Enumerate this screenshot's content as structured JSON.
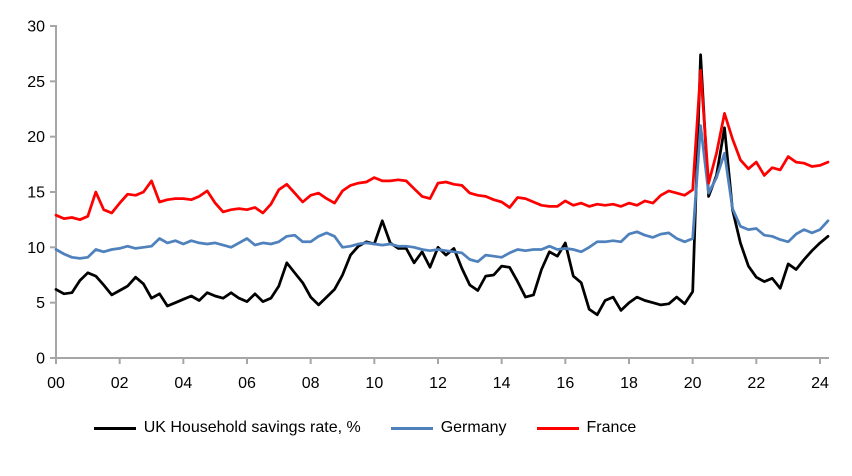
{
  "chart_data": {
    "type": "line",
    "title": "",
    "xlabel": "",
    "ylabel": "",
    "grid": false,
    "legend_position": "bottom",
    "axis_color": "#a6a6a6",
    "ylim": [
      0,
      30
    ],
    "y_ticks": [
      0,
      5,
      10,
      15,
      20,
      25,
      30
    ],
    "x_ticks": [
      {
        "year": 2000,
        "label": "00"
      },
      {
        "year": 2002,
        "label": "02"
      },
      {
        "year": 2004,
        "label": "04"
      },
      {
        "year": 2006,
        "label": "06"
      },
      {
        "year": 2008,
        "label": "08"
      },
      {
        "year": 2010,
        "label": "10"
      },
      {
        "year": 2012,
        "label": "12"
      },
      {
        "year": 2014,
        "label": "14"
      },
      {
        "year": 2016,
        "label": "16"
      },
      {
        "year": 2018,
        "label": "18"
      },
      {
        "year": 2020,
        "label": "20"
      },
      {
        "year": 2022,
        "label": "22"
      },
      {
        "year": 2024,
        "label": "24"
      }
    ],
    "x_start": 2000.0,
    "x_step": 0.25,
    "x_note": "quarterly data, 2000Q1 to 2024Q2",
    "series": [
      {
        "id": "uk",
        "name": "UK Household savings rate, %",
        "color": "#000000",
        "values": [
          6.2,
          5.8,
          5.9,
          7.0,
          7.7,
          7.4,
          6.6,
          5.7,
          6.1,
          6.5,
          7.3,
          6.7,
          5.4,
          5.8,
          4.7,
          5.0,
          5.3,
          5.6,
          5.2,
          5.9,
          5.6,
          5.4,
          5.9,
          5.4,
          5.1,
          5.8,
          5.1,
          5.4,
          6.5,
          8.6,
          7.7,
          6.8,
          5.5,
          4.8,
          5.5,
          6.2,
          7.5,
          9.3,
          10.1,
          10.5,
          10.3,
          12.4,
          10.4,
          9.9,
          9.9,
          8.6,
          9.6,
          8.2,
          10.0,
          9.3,
          9.9,
          8.1,
          6.6,
          6.1,
          7.4,
          7.5,
          8.3,
          8.2,
          6.9,
          5.5,
          5.7,
          8.0,
          9.6,
          9.2,
          10.4,
          7.4,
          6.8,
          4.4,
          3.9,
          5.2,
          5.5,
          4.3,
          5.0,
          5.5,
          5.2,
          5.0,
          4.8,
          4.9,
          5.5,
          4.9,
          6.0,
          27.4,
          14.6,
          16.5,
          20.8,
          13.4,
          10.4,
          8.3,
          7.3,
          6.9,
          7.2,
          6.3,
          8.5,
          8.0,
          8.9,
          9.7,
          10.4,
          11.0
        ]
      },
      {
        "id": "germany",
        "name": "Germany",
        "color": "#4F81BD",
        "values": [
          9.8,
          9.4,
          9.1,
          9.0,
          9.1,
          9.8,
          9.6,
          9.8,
          9.9,
          10.1,
          9.9,
          10.0,
          10.1,
          10.8,
          10.4,
          10.6,
          10.3,
          10.6,
          10.4,
          10.3,
          10.4,
          10.2,
          10.0,
          10.4,
          10.8,
          10.2,
          10.4,
          10.3,
          10.5,
          11.0,
          11.1,
          10.5,
          10.5,
          11.0,
          11.3,
          11.0,
          10.0,
          10.1,
          10.3,
          10.4,
          10.3,
          10.2,
          10.3,
          10.1,
          10.1,
          10.0,
          9.8,
          9.7,
          9.8,
          9.7,
          9.6,
          9.5,
          8.9,
          8.7,
          9.3,
          9.2,
          9.1,
          9.5,
          9.8,
          9.7,
          9.8,
          9.8,
          10.1,
          9.8,
          9.9,
          9.8,
          9.6,
          10.0,
          10.5,
          10.5,
          10.6,
          10.5,
          11.2,
          11.4,
          11.1,
          10.9,
          11.2,
          11.3,
          10.8,
          10.5,
          10.8,
          21.0,
          14.9,
          16.3,
          18.5,
          13.5,
          11.9,
          11.6,
          11.7,
          11.1,
          11.0,
          10.7,
          10.5,
          11.2,
          11.6,
          11.3,
          11.6,
          12.4
        ]
      },
      {
        "id": "france",
        "name": "France",
        "color": "#FF0000",
        "values": [
          12.9,
          12.6,
          12.7,
          12.5,
          12.8,
          15.0,
          13.4,
          13.1,
          14.0,
          14.8,
          14.7,
          15.0,
          16.0,
          14.1,
          14.3,
          14.4,
          14.4,
          14.3,
          14.6,
          15.1,
          14.0,
          13.2,
          13.4,
          13.5,
          13.4,
          13.6,
          13.1,
          13.9,
          15.2,
          15.7,
          14.9,
          14.1,
          14.7,
          14.9,
          14.4,
          14.0,
          15.1,
          15.6,
          15.8,
          15.9,
          16.3,
          16.0,
          16.0,
          16.1,
          16.0,
          15.3,
          14.6,
          14.4,
          15.8,
          15.9,
          15.7,
          15.6,
          14.9,
          14.7,
          14.6,
          14.3,
          14.1,
          13.6,
          14.5,
          14.4,
          14.1,
          13.8,
          13.7,
          13.7,
          14.2,
          13.8,
          14.0,
          13.7,
          13.9,
          13.8,
          13.9,
          13.7,
          14.0,
          13.8,
          14.2,
          14.0,
          14.7,
          15.1,
          14.9,
          14.7,
          15.2,
          26.0,
          15.8,
          18.5,
          22.1,
          19.8,
          17.9,
          17.1,
          17.7,
          16.5,
          17.2,
          17.0,
          18.2,
          17.7,
          17.6,
          17.3,
          17.4,
          17.7
        ]
      }
    ]
  }
}
